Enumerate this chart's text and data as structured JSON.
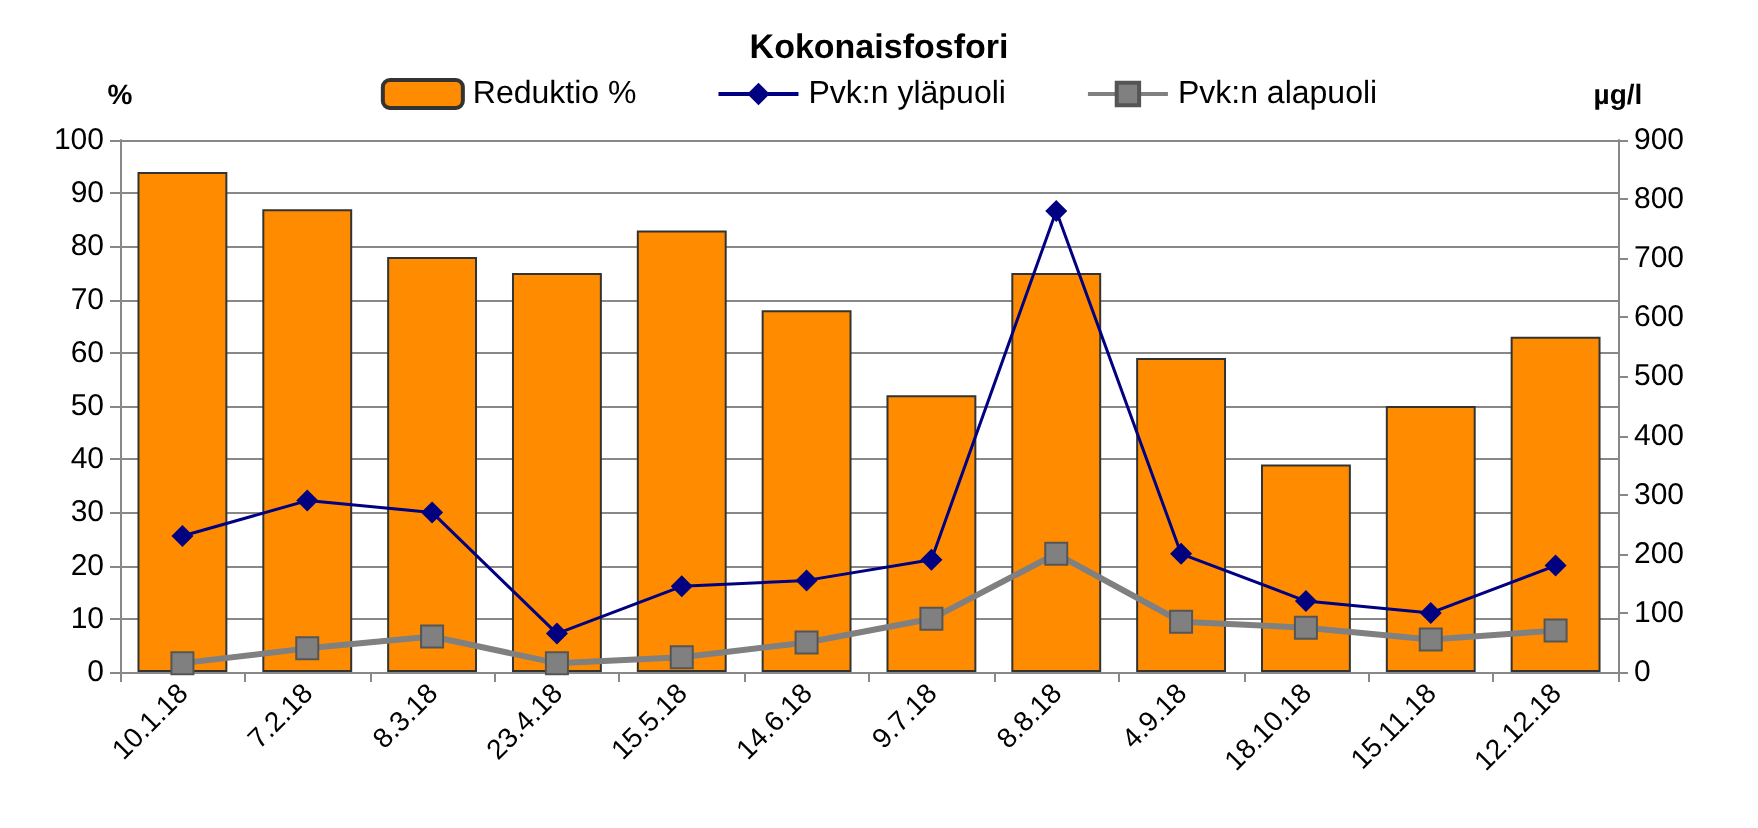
{
  "chart_data": {
    "type": "bar",
    "title": "Kokonaisfosfori",
    "ylabel": "%",
    "y2label": "µg/l",
    "categories": [
      "10.1.18",
      "7.2.18",
      "8.3.18",
      "23.4.18",
      "15.5.18",
      "14.6.18",
      "9.7.18",
      "8.8.18",
      "4.9.18",
      "18.10.18",
      "15.11.18",
      "12.12.18"
    ],
    "series": [
      {
        "name": "Reduktio %",
        "color": "#ff8c00",
        "values": [
          94,
          87,
          78,
          75,
          83,
          68,
          52,
          75,
          59,
          39,
          50,
          63
        ]
      },
      {
        "name": "Pvk:n yläpuoli",
        "type": "line",
        "axis": "y2",
        "marker": "diamond",
        "color": "#000080",
        "values": [
          230,
          290,
          270,
          65,
          145,
          155,
          190,
          780,
          200,
          120,
          100,
          180
        ]
      },
      {
        "name": "Pvk:n alapuoli",
        "type": "line",
        "axis": "y2",
        "marker": "square",
        "color": "#808080",
        "values": [
          15,
          40,
          60,
          15,
          25,
          50,
          90,
          200,
          85,
          75,
          55,
          70
        ]
      }
    ],
    "ylim": [
      0,
      100
    ],
    "yticks": [
      0,
      10,
      20,
      30,
      40,
      50,
      60,
      70,
      80,
      90,
      100
    ],
    "y2lim": [
      0,
      900
    ],
    "y2ticks": [
      0,
      100,
      200,
      300,
      400,
      500,
      600,
      700,
      800,
      900
    ],
    "grid": "y",
    "legend": "top"
  }
}
